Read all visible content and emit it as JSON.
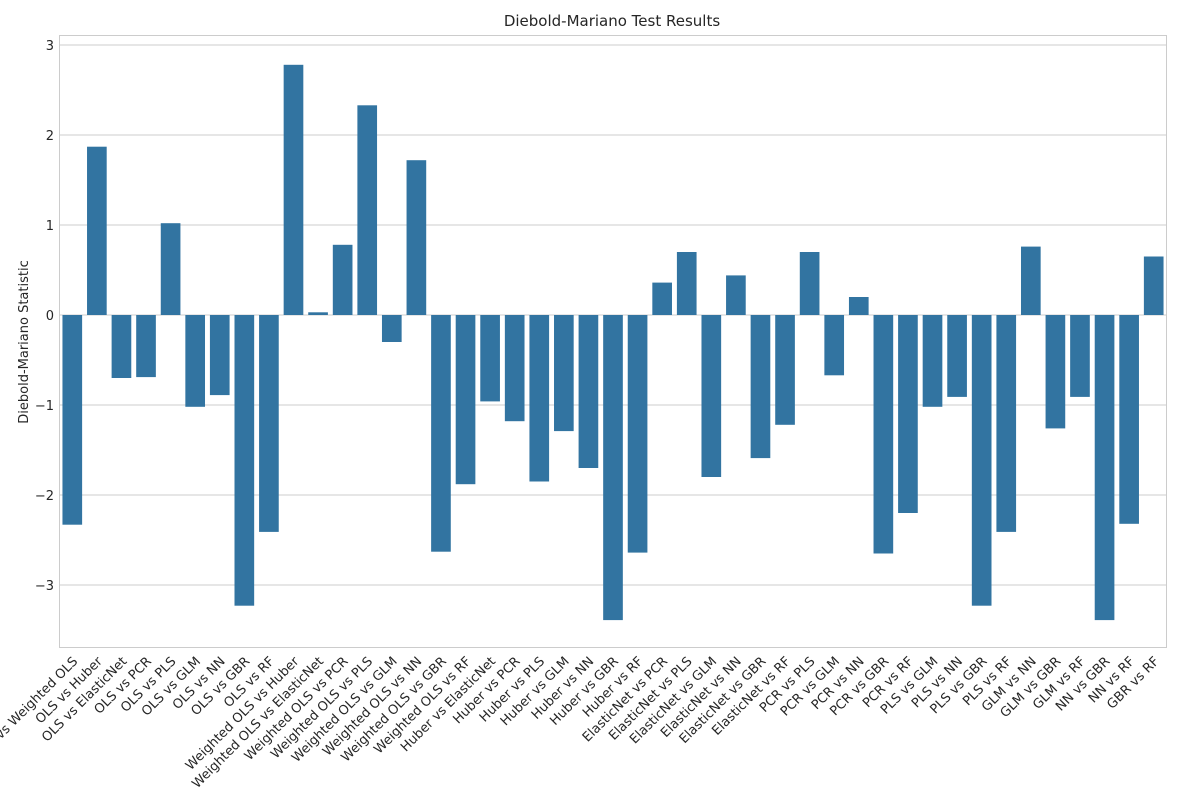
{
  "chart_data": {
    "type": "bar",
    "title": "Diebold-Mariano Test Results",
    "xlabel": "",
    "ylabel": "Diebold-Mariano Statistic",
    "ylim": [
      -3.7,
      3.1
    ],
    "yticks": [
      -3,
      -2,
      -1,
      0,
      1,
      2,
      3
    ],
    "grid": true,
    "bar_color": "#3274a1",
    "categories": [
      "OLS vs Weighted OLS",
      "OLS vs Huber",
      "OLS vs ElasticNet",
      "OLS vs PCR",
      "OLS vs PLS",
      "OLS vs GLM",
      "OLS vs NN",
      "OLS vs GBR",
      "OLS vs RF",
      "Weighted OLS vs Huber",
      "Weighted OLS vs ElasticNet",
      "Weighted OLS vs PCR",
      "Weighted OLS vs PLS",
      "Weighted OLS vs GLM",
      "Weighted OLS vs NN",
      "Weighted OLS vs GBR",
      "Weighted OLS vs RF",
      "Huber vs ElasticNet",
      "Huber vs PCR",
      "Huber vs PLS",
      "Huber vs GLM",
      "Huber vs NN",
      "Huber vs GBR",
      "Huber vs RF",
      "ElasticNet vs PCR",
      "ElasticNet vs PLS",
      "ElasticNet vs GLM",
      "ElasticNet vs NN",
      "ElasticNet vs GBR",
      "ElasticNet vs RF",
      "PCR vs PLS",
      "PCR vs GLM",
      "PCR vs NN",
      "PCR vs GBR",
      "PCR vs RF",
      "PLS vs GLM",
      "PLS vs NN",
      "PLS vs GBR",
      "PLS vs RF",
      "GLM vs NN",
      "GLM vs GBR",
      "GLM vs RF",
      "NN vs GBR",
      "NN vs RF",
      "GBR vs RF"
    ],
    "values": [
      -2.33,
      1.87,
      -0.7,
      -0.69,
      1.02,
      -1.02,
      -0.89,
      -3.23,
      -2.41,
      2.78,
      0.03,
      0.78,
      2.33,
      -0.3,
      1.72,
      -2.63,
      -1.88,
      -0.96,
      -1.18,
      -1.85,
      -1.29,
      -1.7,
      -3.39,
      -2.64,
      0.36,
      0.7,
      -1.8,
      0.44,
      -1.59,
      -1.22,
      0.7,
      -0.67,
      0.2,
      -2.65,
      -2.2,
      -1.02,
      -0.91,
      -3.23,
      -2.41,
      0.76,
      -1.26,
      -0.91,
      -3.39,
      -2.32,
      0.65
    ]
  }
}
